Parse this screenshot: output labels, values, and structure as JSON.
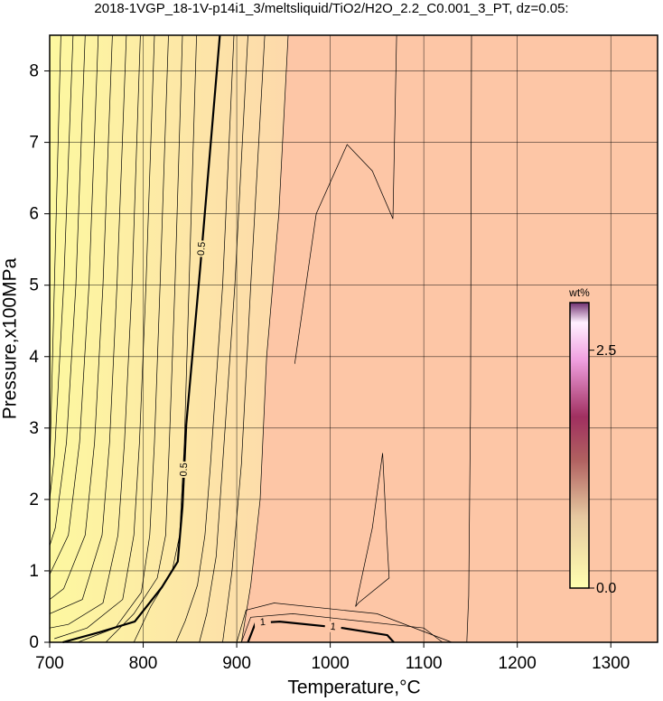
{
  "chart_data": {
    "type": "contour",
    "title": "2018-1VGP_18-1V-p14i1_3/meltsliquid/TiO2/H2O_2.2_C0.001_3_PT, dz=0.05:",
    "x_label": "Temperature,°C",
    "y_label": "Pressure,x100MPa",
    "xlim": [
      700,
      1350
    ],
    "ylim": [
      0,
      8.5
    ],
    "xticks": [
      700,
      800,
      900,
      1000,
      1100,
      1200,
      1300
    ],
    "yticks": [
      0,
      1,
      2,
      3,
      4,
      5,
      6,
      7,
      8
    ],
    "grid": true,
    "contours": [
      {
        "level": 0.5,
        "x": [
          882,
          861,
          846,
          842,
          837,
          820,
          791,
          753,
          714
        ],
        "y": [
          8.5,
          5.25,
          3.05,
          1.9,
          1.13,
          0.77,
          0.29,
          0.14,
          0
        ]
      },
      {
        "level": 1,
        "x": [
          912,
          920,
          946,
          1013,
          1061,
          1068
        ],
        "y": [
          0,
          0.27,
          0.29,
          0.2,
          0.1,
          0
        ]
      }
    ],
    "minor_contours": [
      {
        "x": [
          712,
          705,
          700
        ],
        "y": [
          8.5,
          5,
          2.4
        ]
      },
      {
        "x": [
          725,
          715,
          705,
          700
        ],
        "y": [
          8.5,
          5,
          2.6,
          2.0
        ]
      },
      {
        "x": [
          738,
          728,
          718,
          706,
          700
        ],
        "y": [
          8.5,
          5,
          2.8,
          1.6,
          1.35
        ]
      },
      {
        "x": [
          752,
          742,
          732,
          720,
          700
        ],
        "y": [
          8.5,
          5,
          2.8,
          1.5,
          0.95
        ]
      },
      {
        "x": [
          767,
          757,
          748,
          738,
          715,
          700
        ],
        "y": [
          8.5,
          5,
          2.8,
          1.5,
          0.75,
          0.6
        ]
      },
      {
        "x": [
          782,
          772,
          764,
          756,
          735,
          700
        ],
        "y": [
          8.5,
          5,
          2.8,
          1.5,
          0.6,
          0.4
        ]
      },
      {
        "x": [
          797,
          788,
          780,
          773,
          757,
          720,
          700
        ],
        "y": [
          8.5,
          5,
          2.8,
          1.5,
          0.55,
          0.25,
          0.2
        ]
      },
      {
        "x": [
          812,
          803,
          796,
          790,
          778,
          740,
          705
        ],
        "y": [
          8.5,
          5,
          2.8,
          1.5,
          0.6,
          0.2,
          0.05
        ]
      },
      {
        "x": [
          827,
          818,
          812,
          807,
          798,
          770,
          730
        ],
        "y": [
          8.5,
          5,
          2.8,
          1.5,
          0.7,
          0.2,
          0
        ]
      },
      {
        "x": [
          842,
          834,
          828,
          824,
          815,
          790,
          760
        ],
        "y": [
          8.5,
          5,
          2.8,
          1.5,
          0.9,
          0.4,
          0
        ]
      },
      {
        "x": [
          857,
          849,
          844,
          839,
          831,
          808,
          790
        ],
        "y": [
          8.5,
          5,
          2.8,
          1.5,
          1.0,
          0.5,
          0
        ]
      },
      {
        "x": [
          897,
          885,
          872,
          866,
          858,
          845,
          835
        ],
        "y": [
          8.5,
          5,
          2.5,
          1.5,
          0.8,
          0.3,
          0
        ]
      },
      {
        "x": [
          912,
          898,
          885,
          878,
          868,
          860
        ],
        "y": [
          8.5,
          5,
          2.5,
          1.2,
          0.4,
          0
        ]
      },
      {
        "x": [
          930,
          915,
          905,
          895,
          885
        ],
        "y": [
          8.5,
          5,
          2.5,
          1,
          0
        ]
      },
      {
        "x": [
          955,
          945,
          932,
          925,
          915,
          905
        ],
        "y": [
          8.5,
          6,
          4,
          2,
          0.8,
          0
        ]
      },
      {
        "x": [
          962,
          985,
          1018,
          1045,
          1067,
          1071
        ],
        "y": [
          3.9,
          6.0,
          6.97,
          6.6,
          5.93,
          8.5
        ]
      },
      {
        "x": [
          1027,
          1045,
          1056,
          1060,
          1063,
          1030,
          1027
        ],
        "y": [
          0.5,
          1.6,
          2.65,
          1.6,
          0.9,
          0.55,
          0.5
        ]
      },
      {
        "x": [
          1146,
          1148,
          1150,
          1151
        ],
        "y": [
          0,
          0.65,
          3.3,
          8.5
        ]
      },
      {
        "x": [
          900,
          910,
          940,
          1050,
          1130
        ],
        "y": [
          0,
          0.45,
          0.55,
          0.4,
          0
        ]
      },
      {
        "x": [
          905,
          915,
          960,
          1100,
          1120
        ],
        "y": [
          0,
          0.35,
          0.4,
          0.2,
          0
        ]
      }
    ],
    "colorbar": {
      "label": "wt%",
      "clim": [
        0,
        3
      ],
      "ticks": [
        {
          "value": 0,
          "label": "0.0"
        },
        2.5
      ]
    }
  }
}
